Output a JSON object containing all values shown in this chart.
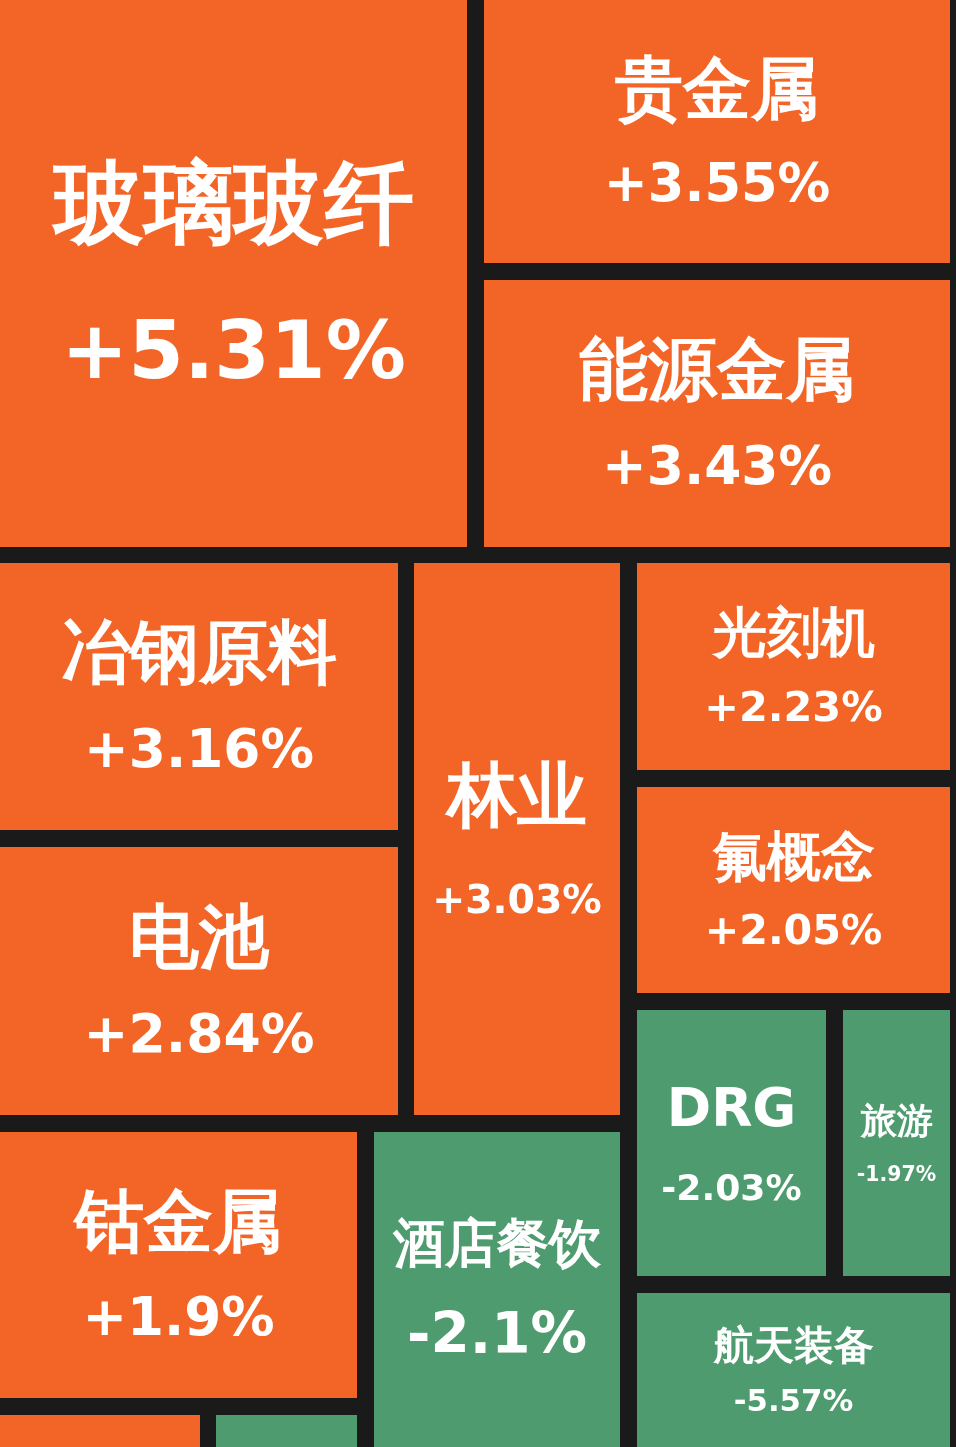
{
  "chart_data": {
    "type": "other",
    "categories": [
      "玻璃玻纤",
      "贵金属",
      "能源金属",
      "冶钢原料",
      "林业",
      "光刻机",
      "氟概念",
      "电池",
      "DRG",
      "旅游",
      "钴金属",
      "酒店餐饮",
      "航天装备",
      null,
      null
    ],
    "values": [
      5.31,
      3.55,
      3.43,
      3.16,
      3.03,
      2.23,
      2.05,
      2.84,
      -2.03,
      -1.97,
      1.9,
      -2.1,
      -5.57,
      null,
      null
    ],
    "value_labels": [
      "+5.31%",
      "+3.55%",
      "+3.43%",
      "+3.16%",
      "+3.03%",
      "+2.23%",
      "+2.05%",
      "+2.84%",
      "-2.03%",
      "-1.97%",
      "+1.9%",
      "-2.1%",
      "-5.57%",
      null,
      null
    ],
    "colors": [
      "#f26527",
      "#f26527",
      "#f26527",
      "#f26527",
      "#f26527",
      "#f26527",
      "#f26527",
      "#f26527",
      "#4e9b6f",
      "#4e9b6f",
      "#f26527",
      "#4e9b6f",
      "#4e9b6f",
      "#f26527",
      "#4e9b6f"
    ]
  }
}
